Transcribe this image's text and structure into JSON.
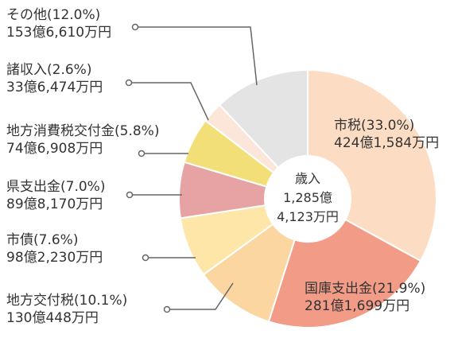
{
  "chart_data": {
    "type": "pie",
    "title": "",
    "center_label": [
      "歳入",
      "1,285億",
      "4,123万円"
    ],
    "slices": [
      {
        "name": "市税(33.0%)",
        "amount": "424億1,584万円",
        "percent": 33.0,
        "color": "#FCDDC4"
      },
      {
        "name": "国庫支出金(21.9%)",
        "amount": "281億1,699万円",
        "percent": 21.9,
        "color": "#F29C87"
      },
      {
        "name": "地方交付税(10.1%)",
        "amount": "130億448万円",
        "percent": 10.1,
        "color": "#FBD6A0"
      },
      {
        "name": "市債(7.6%)",
        "amount": "98億2,230万円",
        "percent": 7.6,
        "color": "#FDE6A8"
      },
      {
        "name": "県支出金(7.0%)",
        "amount": "89億8,170万円",
        "percent": 7.0,
        "color": "#E7A3A3"
      },
      {
        "name": "地方消費税交付金(5.8%)",
        "amount": "74億6,908万円",
        "percent": 5.8,
        "color": "#F2DF78"
      },
      {
        "name": "諸収入(2.6%)",
        "amount": "33億6,474万円",
        "percent": 2.6,
        "color": "#FCE6DA"
      },
      {
        "name": "その他(12.0%)",
        "amount": "153億6,610万円",
        "percent": 12.0,
        "color": "#E4E4E4"
      }
    ]
  }
}
